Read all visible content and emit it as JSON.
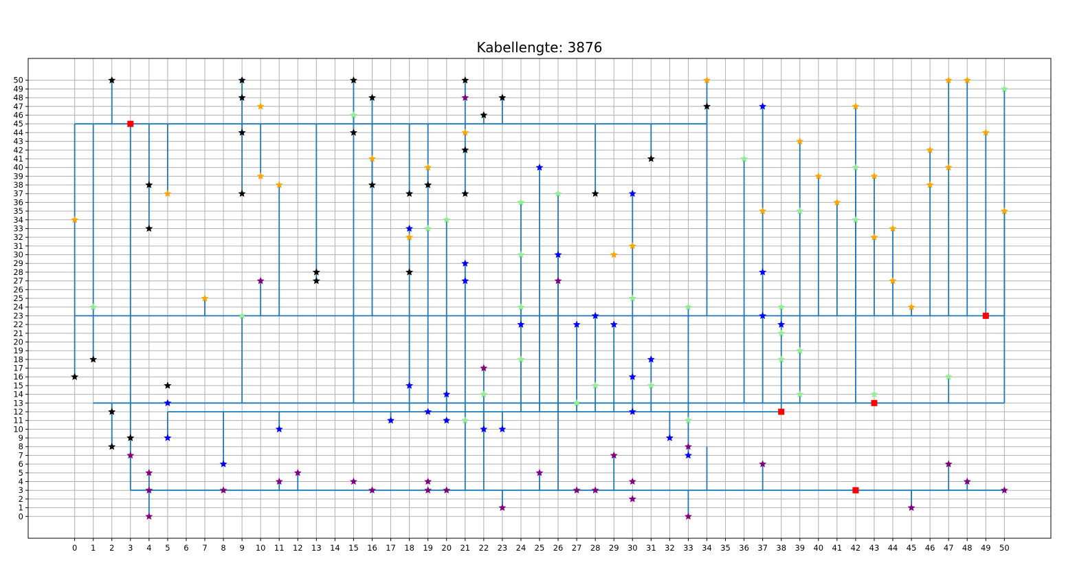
{
  "chart_data": {
    "type": "scatter",
    "title": "Kabellengte: 3876",
    "xlabel": "",
    "ylabel": "",
    "xlim": [
      -2.5,
      52.5
    ],
    "ylim": [
      -2.5,
      52.5
    ],
    "xticks": [
      0,
      1,
      2,
      3,
      4,
      5,
      6,
      7,
      8,
      9,
      10,
      11,
      12,
      13,
      14,
      15,
      16,
      17,
      18,
      19,
      20,
      21,
      22,
      23,
      24,
      25,
      26,
      27,
      28,
      29,
      30,
      31,
      32,
      33,
      34,
      35,
      36,
      37,
      38,
      39,
      40,
      41,
      42,
      43,
      44,
      45,
      46,
      47,
      48,
      49,
      50
    ],
    "yticks": [
      0,
      1,
      2,
      3,
      4,
      5,
      6,
      7,
      8,
      9,
      10,
      11,
      12,
      13,
      14,
      15,
      16,
      17,
      18,
      19,
      20,
      21,
      22,
      23,
      24,
      25,
      26,
      27,
      28,
      29,
      30,
      31,
      32,
      33,
      34,
      35,
      36,
      37,
      38,
      39,
      40,
      41,
      42,
      43,
      44,
      45,
      46,
      47,
      48,
      49,
      50
    ],
    "grid": true,
    "colors": {
      "cable": "#1f77b4",
      "grid": "#b0b0b0",
      "battery": "#ff0000",
      "black": "#000000",
      "orange": "#ffa500",
      "blue": "#0000ff",
      "lightgreen": "#90ee90",
      "purple": "#800080"
    },
    "batteries": [
      [
        3,
        45
      ],
      [
        49,
        23
      ],
      [
        38,
        12
      ],
      [
        43,
        13
      ],
      [
        42,
        3
      ]
    ],
    "houses": {
      "black": [
        [
          2,
          50
        ],
        [
          9,
          50
        ],
        [
          15,
          50
        ],
        [
          21,
          50
        ],
        [
          9,
          48
        ],
        [
          16,
          48
        ],
        [
          23,
          48
        ],
        [
          34,
          47
        ],
        [
          22,
          46
        ],
        [
          9,
          44
        ],
        [
          15,
          44
        ],
        [
          21,
          42
        ],
        [
          31,
          41
        ],
        [
          4,
          38
        ],
        [
          16,
          38
        ],
        [
          19,
          38
        ],
        [
          9,
          37
        ],
        [
          18,
          37
        ],
        [
          21,
          37
        ],
        [
          28,
          37
        ],
        [
          4,
          33
        ],
        [
          13,
          28
        ],
        [
          18,
          28
        ],
        [
          13,
          27
        ],
        [
          1,
          18
        ],
        [
          0,
          16
        ],
        [
          5,
          15
        ],
        [
          2,
          12
        ],
        [
          3,
          9
        ],
        [
          2,
          8
        ]
      ],
      "orange": [
        [
          34,
          50
        ],
        [
          47,
          50
        ],
        [
          48,
          50
        ],
        [
          10,
          47
        ],
        [
          42,
          47
        ],
        [
          21,
          44
        ],
        [
          49,
          44
        ],
        [
          39,
          43
        ],
        [
          46,
          42
        ],
        [
          16,
          41
        ],
        [
          19,
          40
        ],
        [
          47,
          40
        ],
        [
          10,
          39
        ],
        [
          40,
          39
        ],
        [
          43,
          39
        ],
        [
          11,
          38
        ],
        [
          46,
          38
        ],
        [
          5,
          37
        ],
        [
          41,
          36
        ],
        [
          37,
          35
        ],
        [
          50,
          35
        ],
        [
          0,
          34
        ],
        [
          44,
          33
        ],
        [
          18,
          32
        ],
        [
          43,
          32
        ],
        [
          30,
          31
        ],
        [
          29,
          30
        ],
        [
          44,
          27
        ],
        [
          7,
          25
        ],
        [
          45,
          24
        ]
      ],
      "blue": [
        [
          37,
          47
        ],
        [
          25,
          40
        ],
        [
          30,
          37
        ],
        [
          18,
          33
        ],
        [
          26,
          30
        ],
        [
          21,
          29
        ],
        [
          37,
          28
        ],
        [
          21,
          27
        ],
        [
          24,
          22
        ],
        [
          27,
          22
        ],
        [
          29,
          22
        ],
        [
          38,
          22
        ],
        [
          28,
          23
        ],
        [
          37,
          23
        ],
        [
          31,
          18
        ],
        [
          30,
          16
        ],
        [
          18,
          15
        ],
        [
          20,
          14
        ],
        [
          5,
          13
        ],
        [
          19,
          12
        ],
        [
          30,
          12
        ],
        [
          17,
          11
        ],
        [
          20,
          11
        ],
        [
          11,
          10
        ],
        [
          22,
          10
        ],
        [
          23,
          10
        ],
        [
          5,
          9
        ],
        [
          32,
          9
        ],
        [
          33,
          7
        ],
        [
          8,
          6
        ]
      ],
      "lightgreen": [
        [
          50,
          49
        ],
        [
          15,
          46
        ],
        [
          36,
          41
        ],
        [
          42,
          40
        ],
        [
          26,
          37
        ],
        [
          24,
          36
        ],
        [
          39,
          35
        ],
        [
          20,
          34
        ],
        [
          42,
          34
        ],
        [
          19,
          33
        ],
        [
          24,
          30
        ],
        [
          30,
          25
        ],
        [
          1,
          24
        ],
        [
          24,
          24
        ],
        [
          33,
          24
        ],
        [
          38,
          24
        ],
        [
          9,
          23
        ],
        [
          38,
          21
        ],
        [
          39,
          19
        ],
        [
          24,
          18
        ],
        [
          38,
          18
        ],
        [
          47,
          16
        ],
        [
          28,
          15
        ],
        [
          31,
          15
        ],
        [
          22,
          14
        ],
        [
          39,
          14
        ],
        [
          43,
          14
        ],
        [
          27,
          13
        ],
        [
          21,
          11
        ],
        [
          33,
          11
        ]
      ],
      "purple": [
        [
          21,
          48
        ],
        [
          10,
          27
        ],
        [
          26,
          27
        ],
        [
          22,
          17
        ],
        [
          33,
          8
        ],
        [
          3,
          7
        ],
        [
          29,
          7
        ],
        [
          37,
          6
        ],
        [
          47,
          6
        ],
        [
          4,
          5
        ],
        [
          12,
          5
        ],
        [
          25,
          5
        ],
        [
          11,
          4
        ],
        [
          15,
          4
        ],
        [
          19,
          4
        ],
        [
          30,
          4
        ],
        [
          48,
          4
        ],
        [
          4,
          3
        ],
        [
          8,
          3
        ],
        [
          16,
          3
        ],
        [
          19,
          3
        ],
        [
          20,
          3
        ],
        [
          27,
          3
        ],
        [
          28,
          3
        ],
        [
          50,
          3
        ],
        [
          30,
          2
        ],
        [
          23,
          1
        ],
        [
          45,
          1
        ],
        [
          4,
          0
        ],
        [
          33,
          0
        ]
      ]
    },
    "cables": [
      [
        [
          0,
          45
        ],
        [
          34,
          45
        ]
      ],
      [
        [
          0,
          45
        ],
        [
          0,
          16
        ]
      ],
      [
        [
          1,
          45
        ],
        [
          1,
          18
        ]
      ],
      [
        [
          2,
          50
        ],
        [
          2,
          45
        ]
      ],
      [
        [
          3,
          45
        ],
        [
          3,
          3
        ]
      ],
      [
        [
          4,
          45
        ],
        [
          4,
          33
        ]
      ],
      [
        [
          5,
          45
        ],
        [
          5,
          37
        ]
      ],
      [
        [
          9,
          45
        ],
        [
          9,
          50
        ]
      ],
      [
        [
          9,
          45
        ],
        [
          9,
          37
        ]
      ],
      [
        [
          10,
          45
        ],
        [
          10,
          39
        ]
      ],
      [
        [
          13,
          45
        ],
        [
          13,
          27
        ]
      ],
      [
        [
          15,
          45
        ],
        [
          15,
          50
        ]
      ],
      [
        [
          16,
          45
        ],
        [
          16,
          48
        ]
      ],
      [
        [
          16,
          45
        ],
        [
          16,
          38
        ]
      ],
      [
        [
          18,
          45
        ],
        [
          18,
          37
        ]
      ],
      [
        [
          19,
          45
        ],
        [
          19,
          38
        ]
      ],
      [
        [
          21,
          45
        ],
        [
          21,
          50
        ]
      ],
      [
        [
          21,
          45
        ],
        [
          21,
          37
        ]
      ],
      [
        [
          22,
          45
        ],
        [
          22,
          46
        ]
      ],
      [
        [
          23,
          45
        ],
        [
          23,
          48
        ]
      ],
      [
        [
          28,
          45
        ],
        [
          28,
          37
        ]
      ],
      [
        [
          31,
          45
        ],
        [
          31,
          41
        ]
      ],
      [
        [
          34,
          45
        ],
        [
          34,
          47
        ]
      ],
      [
        [
          0,
          23
        ],
        [
          50,
          23
        ]
      ],
      [
        [
          50,
          23
        ],
        [
          50,
          35
        ]
      ],
      [
        [
          7,
          23
        ],
        [
          7,
          25
        ]
      ],
      [
        [
          9,
          23
        ],
        [
          9,
          13
        ]
      ],
      [
        [
          10,
          23
        ],
        [
          10,
          27
        ]
      ],
      [
        [
          11,
          23
        ],
        [
          11,
          38
        ]
      ],
      [
        [
          16,
          23
        ],
        [
          16,
          41
        ]
      ],
      [
        [
          34,
          23
        ],
        [
          34,
          50
        ]
      ],
      [
        [
          40,
          23
        ],
        [
          40,
          39
        ]
      ],
      [
        [
          41,
          23
        ],
        [
          41,
          36
        ]
      ],
      [
        [
          42,
          23
        ],
        [
          42,
          47
        ]
      ],
      [
        [
          43,
          23
        ],
        [
          43,
          39
        ]
      ],
      [
        [
          44,
          23
        ],
        [
          44,
          33
        ]
      ],
      [
        [
          45,
          23
        ],
        [
          45,
          24
        ]
      ],
      [
        [
          46,
          23
        ],
        [
          46,
          42
        ]
      ],
      [
        [
          47,
          23
        ],
        [
          47,
          50
        ]
      ],
      [
        [
          48,
          23
        ],
        [
          48,
          50
        ]
      ],
      [
        [
          49,
          23
        ],
        [
          49,
          44
        ]
      ],
      [
        [
          1,
          13
        ],
        [
          50,
          13
        ]
      ],
      [
        [
          50,
          13
        ],
        [
          50,
          49
        ]
      ],
      [
        [
          15,
          13
        ],
        [
          15,
          46
        ]
      ],
      [
        [
          19,
          13
        ],
        [
          19,
          40
        ]
      ],
      [
        [
          36,
          13
        ],
        [
          36,
          41
        ]
      ],
      [
        [
          37,
          13
        ],
        [
          37,
          47
        ]
      ],
      [
        [
          39,
          13
        ],
        [
          39,
          43
        ]
      ],
      [
        [
          42,
          13
        ],
        [
          42,
          40
        ]
      ],
      [
        [
          47,
          13
        ],
        [
          47,
          16
        ]
      ],
      [
        [
          5,
          12
        ],
        [
          38,
          12
        ]
      ],
      [
        [
          5,
          12
        ],
        [
          5,
          9
        ]
      ],
      [
        [
          8,
          12
        ],
        [
          8,
          6
        ]
      ],
      [
        [
          11,
          12
        ],
        [
          11,
          10
        ]
      ],
      [
        [
          17,
          12
        ],
        [
          17,
          11
        ]
      ],
      [
        [
          18,
          12
        ],
        [
          18,
          33
        ]
      ],
      [
        [
          20,
          12
        ],
        [
          20,
          34
        ]
      ],
      [
        [
          22,
          12
        ],
        [
          22,
          10
        ]
      ],
      [
        [
          23,
          12
        ],
        [
          23,
          10
        ]
      ],
      [
        [
          24,
          12
        ],
        [
          24,
          36
        ]
      ],
      [
        [
          25,
          12
        ],
        [
          25,
          40
        ]
      ],
      [
        [
          26,
          12
        ],
        [
          26,
          37
        ]
      ],
      [
        [
          27,
          12
        ],
        [
          27,
          22
        ]
      ],
      [
        [
          28,
          12
        ],
        [
          28,
          23
        ]
      ],
      [
        [
          29,
          12
        ],
        [
          29,
          22
        ]
      ],
      [
        [
          30,
          12
        ],
        [
          30,
          37
        ]
      ],
      [
        [
          31,
          12
        ],
        [
          31,
          18
        ]
      ],
      [
        [
          32,
          12
        ],
        [
          32,
          9
        ]
      ],
      [
        [
          33,
          12
        ],
        [
          33,
          24
        ]
      ],
      [
        [
          33,
          12
        ],
        [
          33,
          7
        ]
      ],
      [
        [
          38,
          12
        ],
        [
          38,
          24
        ]
      ],
      [
        [
          3,
          3
        ],
        [
          50,
          3
        ]
      ],
      [
        [
          2,
          13
        ],
        [
          2,
          8
        ]
      ],
      [
        [
          4,
          3
        ],
        [
          4,
          5
        ]
      ],
      [
        [
          4,
          3
        ],
        [
          4,
          0
        ]
      ],
      [
        [
          12,
          3
        ],
        [
          12,
          5
        ]
      ],
      [
        [
          11,
          3
        ],
        [
          11,
          4
        ]
      ],
      [
        [
          21,
          3
        ],
        [
          21,
          29
        ]
      ],
      [
        [
          22,
          3
        ],
        [
          22,
          17
        ]
      ],
      [
        [
          23,
          3
        ],
        [
          23,
          1
        ]
      ],
      [
        [
          25,
          3
        ],
        [
          25,
          5
        ]
      ],
      [
        [
          26,
          3
        ],
        [
          26,
          30
        ]
      ],
      [
        [
          29,
          3
        ],
        [
          29,
          7
        ]
      ],
      [
        [
          33,
          3
        ],
        [
          33,
          0
        ]
      ],
      [
        [
          34,
          3
        ],
        [
          34,
          8
        ]
      ],
      [
        [
          37,
          3
        ],
        [
          37,
          6
        ]
      ],
      [
        [
          45,
          3
        ],
        [
          45,
          1
        ]
      ],
      [
        [
          47,
          3
        ],
        [
          47,
          6
        ]
      ],
      [
        [
          48,
          3
        ],
        [
          48,
          4
        ]
      ]
    ]
  }
}
